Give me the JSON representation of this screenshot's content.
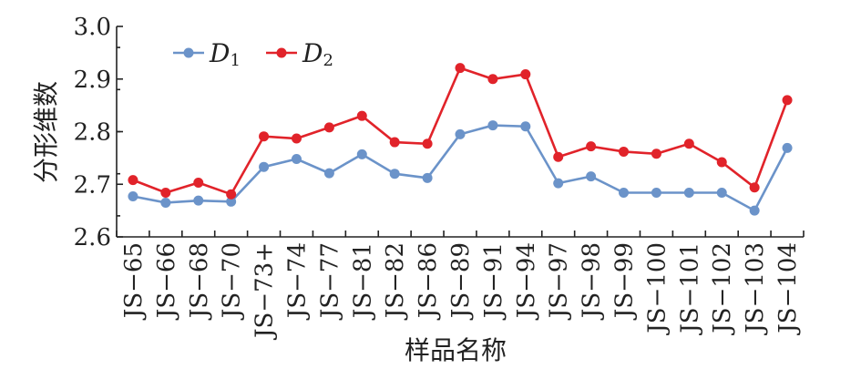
{
  "chart_data": {
    "type": "line",
    "xlabel": "样品名称",
    "ylabel": "分形维数",
    "categories": [
      "JS−65",
      "JS−66",
      "JS−68",
      "JS−70",
      "JS−73+",
      "JS−74",
      "JS−77",
      "JS−81",
      "JS−82",
      "JS−86",
      "JS−89",
      "JS−91",
      "JS−94",
      "JS−97",
      "JS−98",
      "JS−99",
      "JS−100",
      "JS−101",
      "JS−102",
      "JS−103",
      "JS−104"
    ],
    "ylim": [
      2.6,
      3.0
    ],
    "yticks": [
      "2.6",
      "2.7",
      "2.8",
      "2.9",
      "3.0"
    ],
    "series": [
      {
        "name": "D",
        "subscript": "1",
        "color": "#6b93c9",
        "values": [
          2.677,
          2.665,
          2.669,
          2.667,
          2.733,
          2.748,
          2.721,
          2.757,
          2.72,
          2.712,
          2.795,
          2.812,
          2.81,
          2.702,
          2.715,
          2.684,
          2.684,
          2.684,
          2.684,
          2.65,
          2.769
        ]
      },
      {
        "name": "D",
        "subscript": "2",
        "color": "#e1232a",
        "values": [
          2.708,
          2.684,
          2.703,
          2.681,
          2.791,
          2.787,
          2.808,
          2.83,
          2.78,
          2.777,
          2.921,
          2.9,
          2.909,
          2.752,
          2.772,
          2.762,
          2.758,
          2.777,
          2.742,
          2.694,
          2.86
        ]
      }
    ],
    "legend_position": "top-left",
    "grid": false
  }
}
